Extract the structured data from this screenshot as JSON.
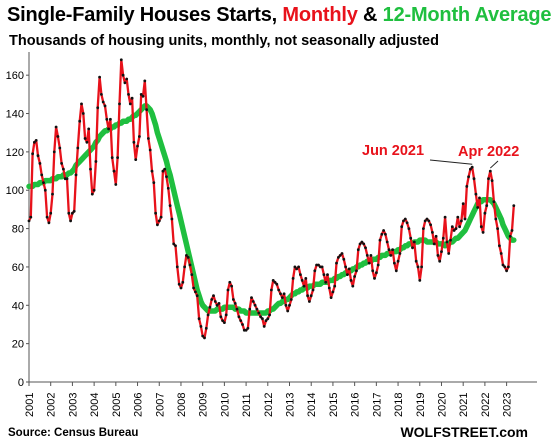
{
  "title": {
    "part1": "Single-Family Houses Starts, ",
    "part2": "Monthly",
    "part3": " & ",
    "part4": "12-Month Average"
  },
  "subtitle": "Thousands of housing units, monthly, not seasonally adjusted",
  "source": "Source: Census Bureau",
  "brand": "WOLFSTREET.com",
  "chart_data": {
    "type": "line",
    "x_ticks": [
      "2001",
      "2002",
      "2003",
      "2004",
      "2005",
      "2006",
      "2007",
      "2008",
      "2009",
      "2010",
      "2011",
      "2012",
      "2013",
      "2014",
      "2015",
      "2016",
      "2017",
      "2018",
      "2019",
      "2020",
      "2021",
      "2022",
      "2023"
    ],
    "ylim": [
      0,
      170
    ],
    "y_ticks": [
      0,
      20,
      40,
      60,
      80,
      100,
      120,
      140,
      160
    ],
    "grid": false,
    "colors": {
      "monthly": "#e8121b",
      "average": "#1fbf3f",
      "points": "#111111"
    },
    "annotations": [
      {
        "label": "Jun 2021",
        "point": "2021-06",
        "value": 112
      },
      {
        "label": "Apr 2022",
        "point": "2022-04",
        "value": 110
      }
    ],
    "series": [
      {
        "name": "Monthly",
        "start": "2001-01",
        "frequency": "monthly",
        "values": [
          84,
          86,
          119,
          125,
          126,
          118,
          114,
          108,
          104,
          100,
          86,
          83,
          88,
          98,
          120,
          133,
          128,
          122,
          114,
          111,
          106,
          106,
          88,
          84,
          88,
          89,
          108,
          122,
          136,
          145,
          140,
          127,
          125,
          132,
          111,
          98,
          100,
          115,
          143,
          159,
          150,
          146,
          144,
          137,
          132,
          137,
          117,
          110,
          103,
          117,
          145,
          168,
          160,
          156,
          158,
          150,
          145,
          148,
          125,
          116,
          123,
          128,
          150,
          149,
          157,
          142,
          127,
          121,
          110,
          104,
          88,
          82,
          84,
          86,
          110,
          111,
          107,
          101,
          92,
          85,
          72,
          71,
          60,
          51,
          49,
          52,
          60,
          66,
          65,
          61,
          56,
          49,
          47,
          45,
          33,
          29,
          24,
          23,
          28,
          35,
          39,
          43,
          45,
          42,
          40,
          41,
          34,
          32,
          31,
          35,
          48,
          52,
          50,
          43,
          41,
          38,
          34,
          32,
          30,
          27,
          27,
          28,
          38,
          44,
          42,
          40,
          38,
          36,
          34,
          33,
          29,
          32,
          33,
          35,
          48,
          53,
          52,
          51,
          48,
          46,
          44,
          46,
          40,
          37,
          40,
          43,
          54,
          60,
          59,
          60,
          56,
          53,
          50,
          54,
          45,
          42,
          45,
          48,
          58,
          61,
          61,
          60,
          60,
          56,
          52,
          56,
          49,
          44,
          47,
          50,
          62,
          65,
          66,
          67,
          64,
          60,
          56,
          59,
          53,
          50,
          55,
          58,
          69,
          72,
          73,
          72,
          70,
          66,
          62,
          66,
          58,
          54,
          57,
          61,
          74,
          77,
          79,
          77,
          73,
          69,
          66,
          69,
          62,
          58,
          63,
          67,
          81,
          84,
          85,
          83,
          80,
          75,
          70,
          73,
          63,
          60,
          53,
          60,
          80,
          84,
          85,
          84,
          82,
          78,
          72,
          76,
          66,
          63,
          68,
          75,
          86,
          73,
          67,
          74,
          81,
          79,
          80,
          86,
          81,
          84,
          93,
          85,
          102,
          107,
          111,
          112,
          106,
          98,
          91,
          96,
          81,
          78,
          88,
          92,
          106,
          110,
          105,
          94,
          85,
          80,
          71,
          67,
          61,
          60,
          58,
          60,
          76,
          79,
          92
        ]
      },
      {
        "name": "12-Month Average",
        "start": "2001-01",
        "frequency": "monthly",
        "values": [
          102,
          102,
          102,
          103,
          103,
          103,
          104,
          104,
          104,
          105,
          105,
          105,
          105,
          106,
          106,
          106,
          107,
          107,
          107,
          108,
          108,
          108,
          109,
          109,
          110,
          111,
          113,
          114,
          115,
          116,
          117,
          118,
          119,
          120,
          121,
          122,
          123,
          125,
          126,
          128,
          129,
          130,
          131,
          131,
          132,
          132,
          133,
          133,
          134,
          134,
          135,
          135,
          136,
          136,
          136,
          137,
          137,
          138,
          139,
          139,
          140,
          141,
          142,
          143,
          144,
          144,
          143,
          142,
          140,
          137,
          134,
          130,
          127,
          124,
          121,
          118,
          115,
          111,
          108,
          104,
          100,
          96,
          92,
          88,
          84,
          80,
          76,
          72,
          68,
          64,
          60,
          56,
          52,
          48,
          45,
          42,
          40,
          39,
          38,
          37,
          37,
          37,
          37,
          37,
          38,
          38,
          38,
          38,
          39,
          39,
          39,
          39,
          39,
          39,
          38,
          38,
          38,
          37,
          37,
          37,
          36,
          36,
          36,
          36,
          36,
          36,
          36,
          36,
          36,
          36,
          36,
          36,
          37,
          37,
          38,
          38,
          39,
          40,
          41,
          41,
          42,
          42,
          43,
          43,
          44,
          45,
          46,
          46,
          47,
          47,
          48,
          48,
          49,
          49,
          49,
          50,
          50,
          50,
          51,
          51,
          51,
          51,
          52,
          52,
          52,
          52,
          53,
          53,
          53,
          54,
          54,
          55,
          55,
          56,
          56,
          57,
          57,
          58,
          58,
          59,
          59,
          60,
          60,
          61,
          61,
          62,
          62,
          63,
          63,
          63,
          64,
          64,
          64,
          65,
          65,
          66,
          66,
          66,
          67,
          67,
          67,
          68,
          68,
          68,
          69,
          69,
          70,
          70,
          71,
          71,
          72,
          72,
          72,
          73,
          73,
          73,
          74,
          74,
          74,
          74,
          73,
          73,
          73,
          73,
          73,
          73,
          72,
          72,
          72,
          72,
          71,
          72,
          72,
          73,
          73,
          74,
          75,
          75,
          76,
          77,
          78,
          79,
          81,
          83,
          85,
          87,
          89,
          91,
          93,
          94,
          94,
          95,
          95,
          95,
          95,
          95,
          94,
          93,
          91,
          89,
          87,
          85,
          82,
          80,
          78,
          76,
          75,
          74,
          74
        ]
      }
    ]
  }
}
